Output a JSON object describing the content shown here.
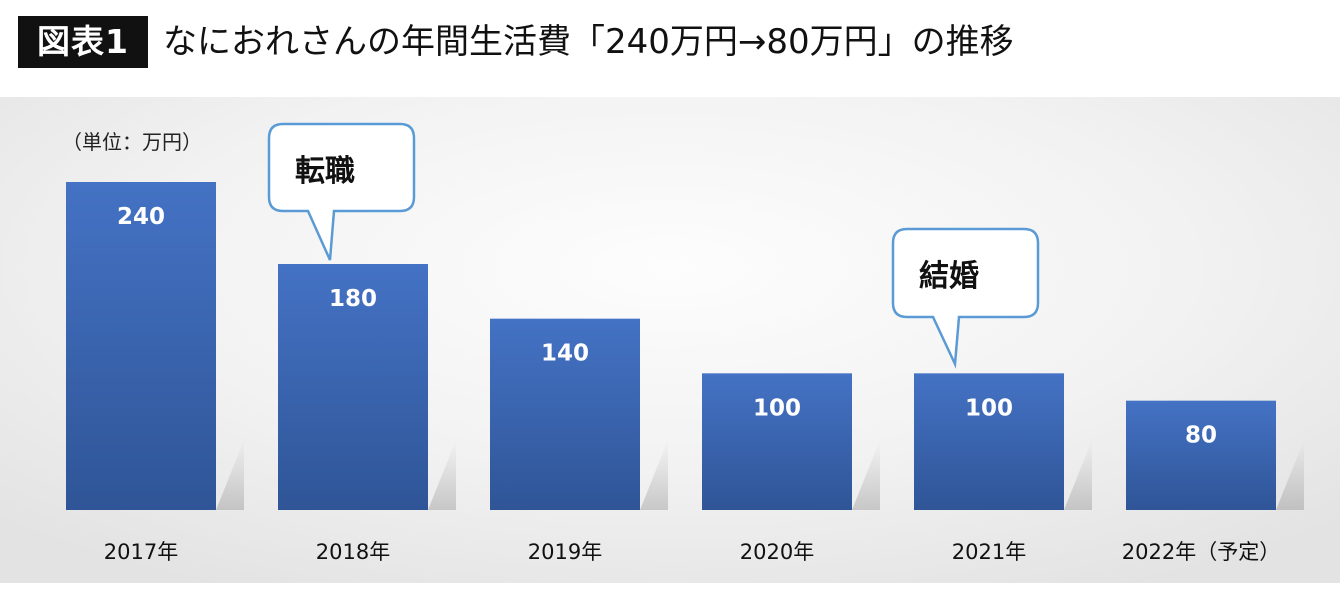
{
  "header": {
    "figure_label": "図表1",
    "title": "なにおれさんの年間生活費「240万円→80万円」の推移"
  },
  "colors": {
    "bar_top": "#4472c4",
    "bar_bottom": "#2f5597",
    "callout_border": "#5b9bd5",
    "value_label": "#ffffff"
  },
  "chart_data": {
    "type": "bar",
    "unit_label": "（単位：万円）",
    "categories": [
      "2017年",
      "2018年",
      "2019年",
      "2020年",
      "2021年",
      "2022年（予定）"
    ],
    "values": [
      240,
      180,
      140,
      100,
      100,
      80
    ],
    "ylim": [
      0,
      240
    ],
    "grid": false,
    "annotations": [
      {
        "text": "転職",
        "category": "2018年"
      },
      {
        "text": "結婚",
        "category": "2021年"
      }
    ]
  }
}
